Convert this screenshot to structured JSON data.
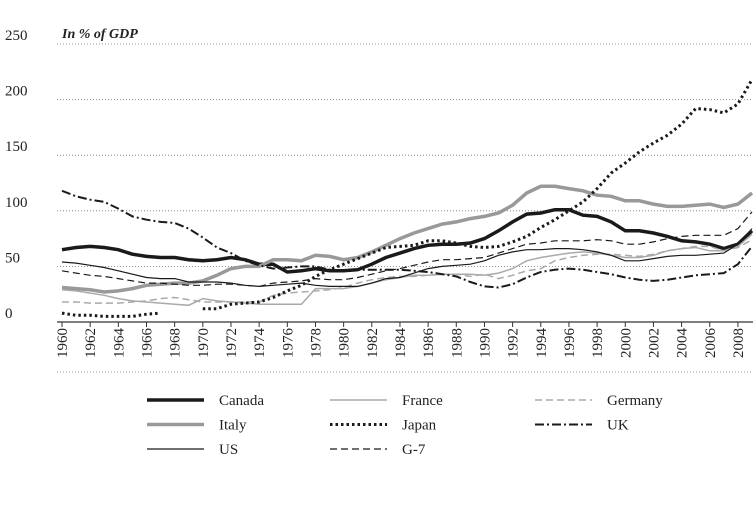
{
  "chart_data": {
    "type": "line",
    "title": "In % of GDP",
    "x": [
      1960,
      1961,
      1962,
      1963,
      1964,
      1965,
      1966,
      1967,
      1968,
      1969,
      1970,
      1971,
      1972,
      1973,
      1974,
      1975,
      1976,
      1977,
      1978,
      1979,
      1980,
      1981,
      1982,
      1983,
      1984,
      1985,
      1986,
      1987,
      1988,
      1989,
      1990,
      1991,
      1992,
      1993,
      1994,
      1995,
      1996,
      1997,
      1998,
      1999,
      2000,
      2001,
      2002,
      2003,
      2004,
      2005,
      2006,
      2007,
      2008,
      2009
    ],
    "xlim": [
      1960,
      2009
    ],
    "xticks": [
      1960,
      1962,
      1964,
      1966,
      1968,
      1970,
      1972,
      1974,
      1976,
      1978,
      1980,
      1982,
      1984,
      1986,
      1988,
      1990,
      1992,
      1994,
      1996,
      1998,
      2000,
      2002,
      2004,
      2006,
      2008
    ],
    "ylim": [
      0,
      250
    ],
    "yticks": [
      0,
      50,
      100,
      150,
      200,
      250
    ],
    "grid": true,
    "series": [
      {
        "name": "Canada",
        "color": "#1a1a1a",
        "style": "solid",
        "linewidth": 3.5,
        "values": [
          65,
          67,
          68,
          67,
          65,
          61,
          59,
          58,
          58,
          56,
          55,
          56,
          58,
          56,
          52,
          52,
          45,
          46,
          48,
          46,
          46,
          47,
          52,
          58,
          62,
          66,
          69,
          70,
          70,
          71,
          75,
          82,
          90,
          97,
          98,
          101,
          101,
          96,
          95,
          90,
          82,
          82,
          80,
          77,
          73,
          72,
          70,
          66,
          70,
          82
        ]
      },
      {
        "name": "France",
        "color": "#aaaaaa",
        "style": "solid",
        "linewidth": 1.5,
        "values": [
          29,
          28,
          26,
          24,
          21,
          19,
          18,
          17,
          16,
          15,
          21,
          19,
          18,
          17,
          16,
          16,
          16,
          16,
          30,
          30,
          30,
          32,
          35,
          38,
          40,
          42,
          42,
          43,
          43,
          43,
          42,
          44,
          48,
          55,
          58,
          60,
          62,
          63,
          62,
          60,
          58,
          58,
          60,
          64,
          66,
          67,
          64,
          64,
          68,
          79
        ]
      },
      {
        "name": "Germany",
        "color": "#aaaaaa",
        "style": "dashed",
        "linewidth": 1.5,
        "values": [
          18,
          18,
          17,
          17,
          17,
          18,
          19,
          21,
          22,
          20,
          18,
          18,
          18,
          18,
          18,
          24,
          26,
          27,
          28,
          29,
          31,
          35,
          38,
          40,
          41,
          41,
          42,
          43,
          43,
          41,
          43,
          39,
          42,
          46,
          48,
          55,
          58,
          60,
          61,
          61,
          60,
          59,
          61,
          64,
          66,
          68,
          68,
          64,
          67,
          74
        ]
      },
      {
        "name": "Italy",
        "color": "#999999",
        "style": "solid",
        "linewidth": 3.5,
        "values": [
          31,
          30,
          29,
          27,
          28,
          30,
          33,
          34,
          35,
          35,
          37,
          42,
          48,
          50,
          50,
          56,
          56,
          55,
          60,
          59,
          56,
          58,
          63,
          69,
          75,
          80,
          84,
          88,
          90,
          93,
          95,
          98,
          105,
          116,
          122,
          122,
          120,
          118,
          114,
          113,
          109,
          109,
          106,
          104,
          104,
          105,
          106,
          103,
          106,
          116
        ]
      },
      {
        "name": "Japan",
        "color": "#1a1a1a",
        "style": "dotted",
        "linewidth": 3,
        "values": [
          8,
          6,
          6,
          5,
          5,
          5,
          7,
          8,
          null,
          null,
          12,
          12,
          16,
          17,
          18,
          22,
          28,
          33,
          41,
          47,
          52,
          57,
          62,
          67,
          68,
          69,
          73,
          73,
          71,
          68,
          67,
          68,
          72,
          77,
          85,
          92,
          100,
          108,
          120,
          134,
          143,
          153,
          161,
          168,
          178,
          192,
          191,
          188,
          196,
          218
        ]
      },
      {
        "name": "UK",
        "color": "#1a1a1a",
        "style": "dashdot",
        "linewidth": 2,
        "values": [
          118,
          113,
          110,
          108,
          102,
          95,
          92,
          90,
          89,
          84,
          76,
          67,
          62,
          55,
          51,
          48,
          49,
          50,
          50,
          47,
          46,
          47,
          47,
          47,
          47,
          46,
          45,
          43,
          41,
          36,
          32,
          31,
          34,
          40,
          45,
          47,
          48,
          47,
          45,
          43,
          40,
          38,
          37,
          38,
          40,
          42,
          43,
          44,
          52,
          68
        ]
      },
      {
        "name": "US",
        "color": "#1a1a1a",
        "style": "solid",
        "linewidth": 1.2,
        "values": [
          54,
          53,
          51,
          49,
          46,
          43,
          40,
          39,
          39,
          36,
          36,
          36,
          35,
          33,
          32,
          33,
          34,
          35,
          33,
          32,
          32,
          32,
          35,
          39,
          40,
          44,
          48,
          50,
          51,
          52,
          55,
          60,
          63,
          65,
          65,
          66,
          66,
          65,
          63,
          60,
          55,
          55,
          57,
          59,
          60,
          60,
          61,
          62,
          70,
          84
        ]
      },
      {
        "name": "G-7",
        "color": "#1a1a1a",
        "style": "dashed",
        "linewidth": 1.2,
        "values": [
          46,
          44,
          42,
          41,
          39,
          37,
          35,
          35,
          34,
          33,
          33,
          34,
          34,
          33,
          32,
          35,
          36,
          37,
          39,
          38,
          38,
          40,
          43,
          46,
          48,
          51,
          54,
          56,
          56,
          57,
          58,
          62,
          66,
          70,
          71,
          73,
          73,
          73,
          74,
          73,
          70,
          70,
          72,
          75,
          77,
          78,
          78,
          78,
          84,
          99
        ]
      }
    ]
  }
}
